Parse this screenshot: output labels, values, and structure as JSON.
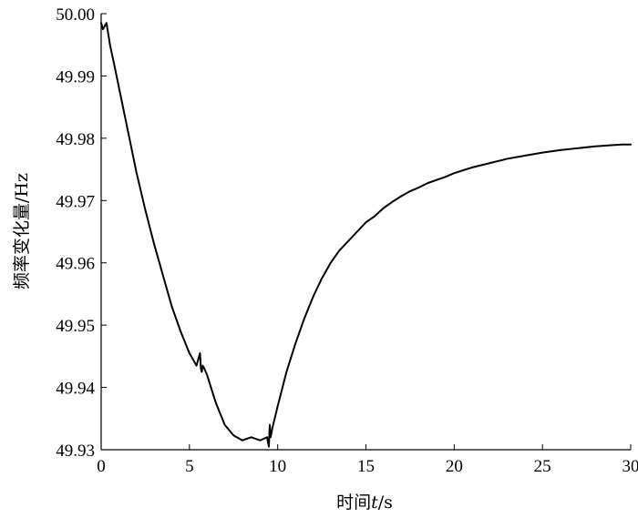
{
  "chart_data": {
    "type": "line",
    "title": "",
    "xlabel_parts": [
      "时间",
      "t",
      "/s"
    ],
    "ylabel": "频率变化量/Hz",
    "xlim": [
      0,
      30
    ],
    "ylim": [
      49.93,
      50.0
    ],
    "x_ticks": [
      "0",
      "5",
      "10",
      "15",
      "20",
      "25",
      "30"
    ],
    "y_ticks": [
      "49.93",
      "49.94",
      "49.95",
      "49.96",
      "49.97",
      "49.98",
      "49.99",
      "50.00"
    ],
    "grid": false,
    "line_color": "#000000",
    "series": [
      {
        "x": [
          0.0,
          0.1,
          0.2,
          0.3,
          0.5,
          0.8,
          1.2,
          1.6,
          2.0,
          2.5,
          3.0,
          3.5,
          4.0,
          4.5,
          5.0,
          5.4,
          5.6,
          5.65,
          5.7,
          5.75,
          5.85,
          6.0,
          6.5,
          7.0,
          7.5,
          8.0,
          8.5,
          9.0,
          9.4,
          9.5,
          9.55,
          9.6,
          9.7,
          10.0,
          10.5,
          11.0,
          11.5,
          12.0,
          12.5,
          13.0,
          13.5,
          14.0,
          14.5,
          15.0,
          15.5,
          16.0,
          16.5,
          17.0,
          17.5,
          18.0,
          18.5,
          19.0,
          19.5,
          20.0,
          21.0,
          22.0,
          23.0,
          24.0,
          25.0,
          26.0,
          27.0,
          28.0,
          29.0,
          29.5,
          30.0
        ],
        "y": [
          49.9985,
          49.9975,
          49.998,
          49.9985,
          49.995,
          49.991,
          49.9855,
          49.98,
          49.9745,
          49.9685,
          49.963,
          49.958,
          49.953,
          49.949,
          49.9455,
          49.9435,
          49.9455,
          49.943,
          49.9425,
          49.9435,
          49.943,
          49.942,
          49.9375,
          49.934,
          49.9323,
          49.9315,
          49.932,
          49.9315,
          49.932,
          49.9305,
          49.934,
          49.932,
          49.9335,
          49.937,
          49.9425,
          49.947,
          49.951,
          49.9545,
          49.9575,
          49.96,
          49.962,
          49.9635,
          49.965,
          49.9665,
          49.9675,
          49.9688,
          49.9698,
          49.9707,
          49.9715,
          49.9721,
          49.9728,
          49.9733,
          49.9738,
          49.9744,
          49.9753,
          49.976,
          49.9767,
          49.9772,
          49.9777,
          49.9781,
          49.9784,
          49.9787,
          49.9789,
          49.979,
          49.979
        ]
      }
    ]
  }
}
